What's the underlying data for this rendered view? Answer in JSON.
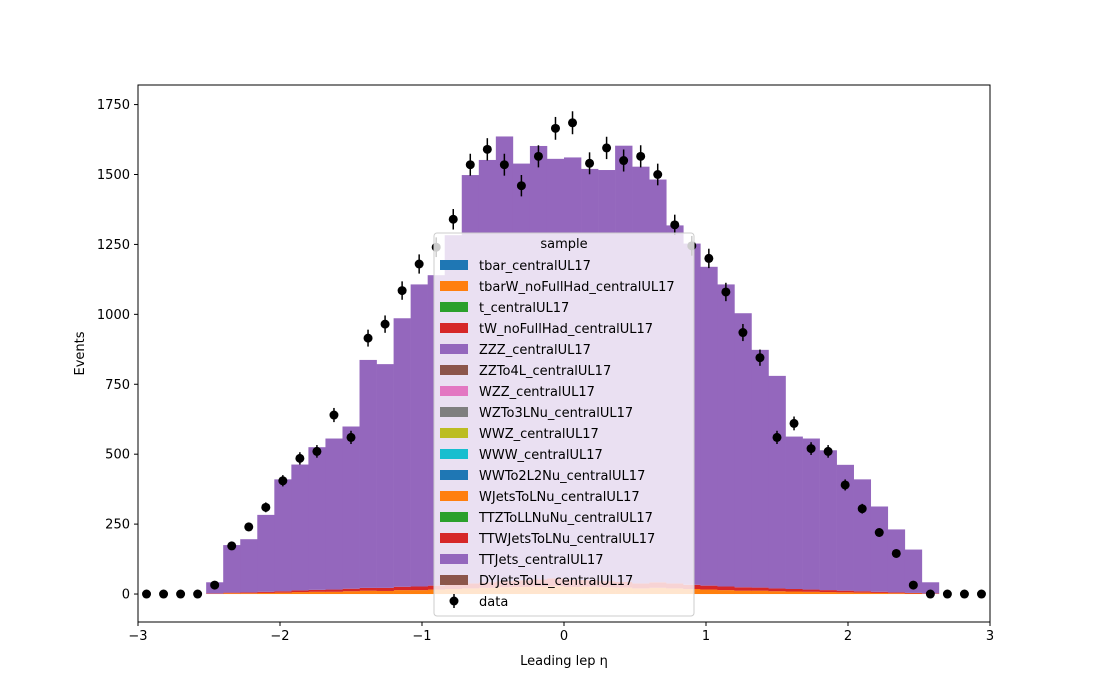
{
  "chart_data": {
    "type": "bar",
    "stacked": true,
    "histogram": true,
    "title": "",
    "xlabel": "Leading lep η",
    "ylabel": "Events",
    "xlim": [
      -3,
      3
    ],
    "ylim": [
      -100,
      1820
    ],
    "xticks": [
      -3,
      -2,
      -1,
      0,
      1,
      2,
      3
    ],
    "xtick_labels": [
      "−3",
      "−2",
      "−1",
      "0",
      "1",
      "2",
      "3"
    ],
    "yticks": [
      0,
      250,
      500,
      750,
      1000,
      1250,
      1500,
      1750
    ],
    "ytick_labels": [
      "0",
      "250",
      "500",
      "750",
      "1000",
      "1250",
      "1500",
      "1750"
    ],
    "grid": false,
    "legend_title": "sample",
    "legend_position": "center",
    "bin_edges": [
      -3.0,
      -2.88,
      -2.76,
      -2.64,
      -2.52,
      -2.4,
      -2.28,
      -2.16,
      -2.04,
      -1.92,
      -1.8,
      -1.68,
      -1.56,
      -1.44,
      -1.32,
      -1.2,
      -1.08,
      -0.96,
      -0.84,
      -0.72,
      -0.6,
      -0.48,
      -0.36,
      -0.24,
      -0.12,
      0.0,
      0.12,
      0.24,
      0.36,
      0.48,
      0.6,
      0.72,
      0.84,
      0.96,
      1.08,
      1.2,
      1.32,
      1.44,
      1.56,
      1.68,
      1.8,
      1.92,
      2.04,
      2.16,
      2.28,
      2.4,
      2.52,
      2.64,
      2.76,
      2.88,
      3.0
    ],
    "series": [
      {
        "name": "tbar_centralUL17",
        "color": "#1f77b4",
        "values": [
          0,
          0,
          0,
          0,
          0,
          0,
          0,
          0,
          0,
          0,
          0,
          0,
          0,
          0,
          0,
          0,
          0,
          0,
          0,
          0,
          0,
          0,
          0,
          0,
          0,
          0,
          0,
          0,
          0,
          0,
          0,
          0,
          0,
          0,
          0,
          0,
          0,
          0,
          0,
          0,
          0,
          0,
          0,
          0,
          0,
          0,
          0,
          0,
          0,
          0
        ]
      },
      {
        "name": "tbarW_noFullHad_centralUL17",
        "color": "#ff7f0e",
        "values": [
          0,
          0,
          0,
          0,
          1,
          3,
          3,
          4,
          5,
          7,
          8,
          8,
          10,
          12,
          11,
          14,
          14,
          16,
          18,
          20,
          22,
          24,
          25,
          26,
          28,
          25,
          26,
          24,
          23,
          20,
          22,
          20,
          18,
          16,
          14,
          12,
          12,
          10,
          9,
          8,
          7,
          6,
          5,
          4,
          3,
          2,
          1,
          0,
          0,
          0
        ]
      },
      {
        "name": "t_centralUL17",
        "color": "#2ca02c",
        "values": [
          0,
          0,
          0,
          0,
          0,
          0,
          0,
          0,
          0,
          0,
          0,
          0,
          0,
          0,
          0,
          0,
          0,
          0,
          0,
          0,
          0,
          0,
          0,
          0,
          0,
          0,
          0,
          0,
          0,
          0,
          0,
          0,
          0,
          0,
          0,
          0,
          0,
          0,
          0,
          0,
          0,
          0,
          0,
          0,
          0,
          0,
          0,
          0,
          0,
          0
        ]
      },
      {
        "name": "tW_noFullHad_centralUL17",
        "color": "#d62728",
        "values": [
          0,
          0,
          0,
          0,
          1,
          2,
          3,
          4,
          5,
          6,
          7,
          8,
          9,
          10,
          11,
          12,
          13,
          14,
          15,
          18,
          20,
          22,
          24,
          26,
          28,
          26,
          24,
          22,
          20,
          18,
          20,
          18,
          15,
          14,
          13,
          12,
          11,
          10,
          9,
          8,
          7,
          6,
          5,
          4,
          3,
          2,
          1,
          0,
          0,
          0
        ]
      },
      {
        "name": "ZZZ_centralUL17",
        "color": "#9467bd",
        "values": [
          0,
          0,
          0,
          0,
          0,
          0,
          0,
          0,
          0,
          0,
          0,
          0,
          0,
          0,
          0,
          0,
          0,
          0,
          0,
          0,
          0,
          0,
          0,
          0,
          0,
          0,
          0,
          0,
          0,
          0,
          0,
          0,
          0,
          0,
          0,
          0,
          0,
          0,
          0,
          0,
          0,
          0,
          0,
          0,
          0,
          0,
          0,
          0,
          0,
          0
        ]
      },
      {
        "name": "ZZTo4L_centralUL17",
        "color": "#8c564b",
        "values": [
          0,
          0,
          0,
          0,
          0,
          0,
          0,
          0,
          0,
          0,
          0,
          0,
          0,
          0,
          0,
          0,
          0,
          0,
          0,
          0,
          0,
          0,
          0,
          0,
          0,
          0,
          0,
          0,
          0,
          0,
          0,
          0,
          0,
          0,
          0,
          0,
          0,
          0,
          0,
          0,
          0,
          0,
          0,
          0,
          0,
          0,
          0,
          0,
          0,
          0
        ]
      },
      {
        "name": "WZZ_centralUL17",
        "color": "#e377c2",
        "values": [
          0,
          0,
          0,
          0,
          0,
          0,
          0,
          0,
          0,
          0,
          0,
          0,
          0,
          0,
          0,
          0,
          0,
          0,
          0,
          0,
          0,
          0,
          0,
          0,
          0,
          0,
          0,
          0,
          0,
          0,
          0,
          0,
          0,
          0,
          0,
          0,
          0,
          0,
          0,
          0,
          0,
          0,
          0,
          0,
          0,
          0,
          0,
          0,
          0,
          0
        ]
      },
      {
        "name": "WZTo3LNu_centralUL17",
        "color": "#7f7f7f",
        "values": [
          0,
          0,
          0,
          0,
          0,
          0,
          0,
          0,
          0,
          0,
          0,
          0,
          0,
          0,
          0,
          0,
          0,
          0,
          0,
          0,
          0,
          0,
          0,
          0,
          0,
          0,
          0,
          0,
          0,
          0,
          0,
          0,
          0,
          0,
          0,
          0,
          0,
          0,
          0,
          0,
          0,
          0,
          0,
          0,
          0,
          0,
          0,
          0,
          0,
          0
        ]
      },
      {
        "name": "WWZ_centralUL17",
        "color": "#bcbd22",
        "values": [
          0,
          0,
          0,
          0,
          0,
          0,
          0,
          0,
          0,
          0,
          0,
          0,
          0,
          0,
          0,
          0,
          0,
          0,
          0,
          0,
          0,
          0,
          0,
          0,
          0,
          0,
          0,
          0,
          0,
          0,
          0,
          0,
          0,
          0,
          0,
          0,
          0,
          0,
          0,
          0,
          0,
          0,
          0,
          0,
          0,
          0,
          0,
          0,
          0,
          0
        ]
      },
      {
        "name": "WWW_centralUL17",
        "color": "#17becf",
        "values": [
          0,
          0,
          0,
          0,
          0,
          0,
          0,
          0,
          0,
          0,
          0,
          0,
          0,
          0,
          0,
          0,
          0,
          0,
          0,
          0,
          0,
          0,
          0,
          0,
          0,
          0,
          0,
          0,
          0,
          0,
          0,
          0,
          0,
          0,
          0,
          0,
          0,
          0,
          0,
          0,
          0,
          0,
          0,
          0,
          0,
          0,
          0,
          0,
          0,
          0
        ]
      },
      {
        "name": "WWTo2L2Nu_centralUL17",
        "color": "#1f77b4",
        "values": [
          0,
          0,
          0,
          0,
          0,
          0,
          0,
          0,
          0,
          0,
          0,
          0,
          0,
          0,
          0,
          0,
          0,
          0,
          0,
          0,
          0,
          0,
          0,
          0,
          0,
          0,
          0,
          0,
          0,
          0,
          0,
          0,
          0,
          0,
          0,
          0,
          0,
          0,
          0,
          0,
          0,
          0,
          0,
          0,
          0,
          0,
          0,
          0,
          0,
          0
        ]
      },
      {
        "name": "WJetsToLNu_centralUL17",
        "color": "#ff7f0e",
        "values": [
          0,
          0,
          0,
          0,
          0,
          0,
          0,
          0,
          0,
          0,
          0,
          0,
          0,
          0,
          0,
          0,
          0,
          0,
          0,
          0,
          0,
          0,
          0,
          0,
          0,
          0,
          0,
          0,
          0,
          0,
          0,
          0,
          0,
          0,
          0,
          0,
          0,
          0,
          0,
          0,
          0,
          0,
          0,
          0,
          0,
          0,
          0,
          0,
          0,
          0
        ]
      },
      {
        "name": "TTZToLLNuNu_centralUL17",
        "color": "#2ca02c",
        "values": [
          0,
          0,
          0,
          0,
          0,
          0,
          0,
          0,
          0,
          0,
          0,
          0,
          0,
          0,
          0,
          0,
          0,
          0,
          0,
          0,
          0,
          0,
          0,
          0,
          0,
          0,
          0,
          0,
          0,
          0,
          0,
          0,
          0,
          0,
          0,
          0,
          0,
          0,
          0,
          0,
          0,
          0,
          0,
          0,
          0,
          0,
          0,
          0,
          0,
          0
        ]
      },
      {
        "name": "TTWJetsToLNu_centralUL17",
        "color": "#d62728",
        "values": [
          0,
          0,
          0,
          0,
          0,
          0,
          0,
          0,
          0,
          0,
          0,
          0,
          0,
          0,
          0,
          0,
          0,
          0,
          0,
          0,
          0,
          0,
          0,
          0,
          0,
          0,
          0,
          0,
          0,
          0,
          0,
          0,
          0,
          0,
          0,
          0,
          0,
          0,
          0,
          0,
          0,
          0,
          0,
          0,
          0,
          0,
          0,
          0,
          0,
          0
        ]
      },
      {
        "name": "TTJets_centralUL17",
        "color": "#9467bd",
        "values": [
          0,
          0,
          0,
          0,
          40,
          170,
          190,
          275,
          400,
          450,
          510,
          540,
          580,
          815,
          800,
          960,
          1080,
          1110,
          1250,
          1460,
          1510,
          1590,
          1490,
          1550,
          1500,
          1510,
          1470,
          1470,
          1560,
          1490,
          1440,
          1280,
          1220,
          1140,
          1080,
          980,
          850,
          760,
          545,
          540,
          500,
          450,
          400,
          305,
          225,
          155,
          40,
          0,
          0,
          0
        ]
      },
      {
        "name": "DYJetsToLL_centralUL17",
        "color": "#8c564b",
        "values": [
          0,
          0,
          0,
          0,
          0,
          0,
          0,
          0,
          0,
          0,
          0,
          0,
          0,
          0,
          0,
          0,
          0,
          0,
          0,
          0,
          0,
          0,
          0,
          0,
          0,
          0,
          0,
          0,
          0,
          0,
          0,
          0,
          0,
          0,
          0,
          0,
          0,
          0,
          0,
          0,
          0,
          0,
          0,
          0,
          0,
          0,
          0,
          0,
          0,
          0
        ]
      }
    ],
    "data": {
      "name": "data",
      "color": "#000000",
      "x": [
        -2.94,
        -2.82,
        -2.7,
        -2.58,
        -2.46,
        -2.34,
        -2.22,
        -2.1,
        -1.98,
        -1.86,
        -1.74,
        -1.62,
        -1.5,
        -1.38,
        -1.26,
        -1.14,
        -1.02,
        -0.9,
        -0.78,
        -0.66,
        -0.54,
        -0.42,
        -0.3,
        -0.18,
        -0.06,
        0.06,
        0.18,
        0.3,
        0.42,
        0.54,
        0.66,
        0.78,
        0.9,
        1.02,
        1.14,
        1.26,
        1.38,
        1.5,
        1.62,
        1.74,
        1.86,
        1.98,
        2.1,
        2.22,
        2.34,
        2.46,
        2.58,
        2.7,
        2.82,
        2.94
      ],
      "y": [
        0,
        0,
        0,
        0,
        32,
        172,
        240,
        310,
        405,
        485,
        510,
        640,
        560,
        915,
        965,
        1085,
        1180,
        1240,
        1340,
        1535,
        1590,
        1535,
        1460,
        1565,
        1665,
        1685,
        1540,
        1595,
        1550,
        1565,
        1500,
        1320,
        1245,
        1200,
        1080,
        935,
        845,
        560,
        610,
        520,
        510,
        390,
        305,
        220,
        145,
        32,
        0,
        0,
        0,
        0
      ]
    }
  }
}
